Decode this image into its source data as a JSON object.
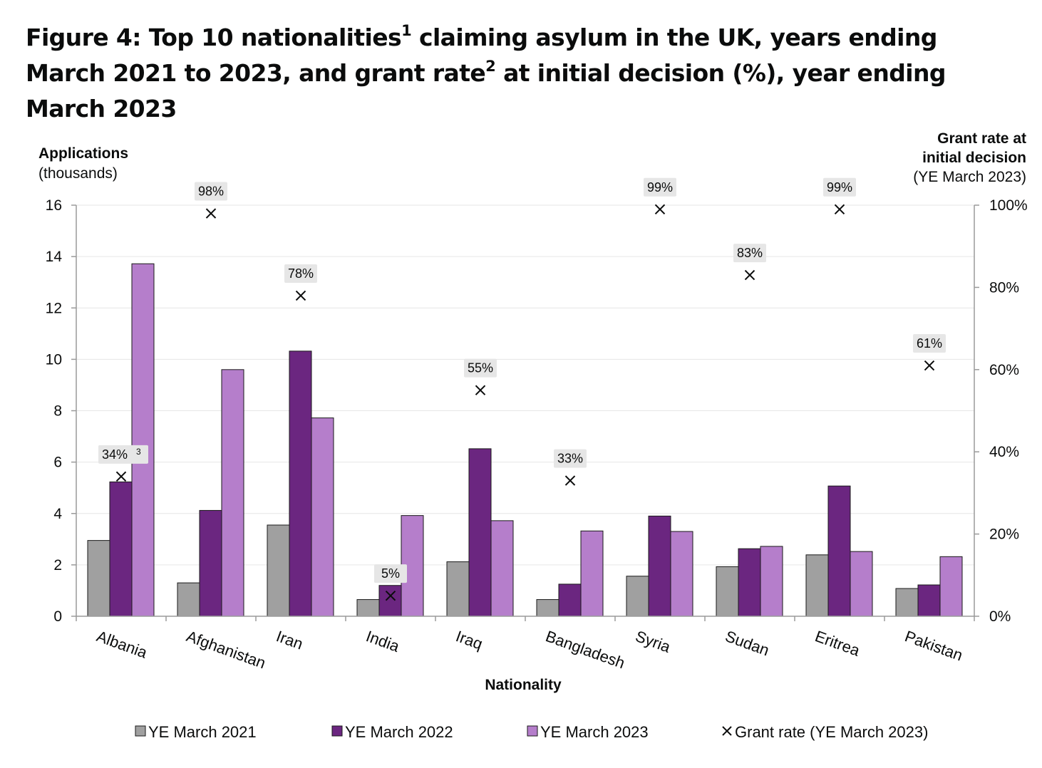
{
  "title": {
    "part1": "Figure 4: Top 10 nationalities",
    "sup1": "1",
    "part2": " claiming asylum in the UK, years ending March 2021 to 2023, and grant rate",
    "sup2": "2",
    "part3": " at initial decision (%), year ending March 2023"
  },
  "chart_data": {
    "type": "bar",
    "categories": [
      "Albania",
      "Afghanistan",
      "Iran",
      "India",
      "Iraq",
      "Bangladesh",
      "Syria",
      "Sudan",
      "Eritrea",
      "Pakistan"
    ],
    "series": [
      {
        "name": "YE March 2021",
        "color": "#a0a0a0",
        "values": [
          2.95,
          1.3,
          3.55,
          0.65,
          2.12,
          0.65,
          1.56,
          1.93,
          2.39,
          1.08
        ]
      },
      {
        "name": "YE March 2022",
        "color": "#6b2680",
        "values": [
          5.23,
          4.12,
          10.32,
          1.2,
          6.52,
          1.25,
          3.9,
          2.63,
          5.07,
          1.22
        ]
      },
      {
        "name": "YE March 2023",
        "color": "#b57ecb",
        "values": [
          13.72,
          9.6,
          7.72,
          3.92,
          3.72,
          3.32,
          3.3,
          2.72,
          2.52,
          2.32
        ]
      }
    ],
    "line_series": {
      "name": "Grant rate (YE March 2023)",
      "marker": "x",
      "axis": "right",
      "values": [
        34,
        98,
        78,
        5,
        55,
        33,
        99,
        83,
        99,
        61
      ],
      "labels": [
        "34%",
        "98%",
        "78%",
        "5%",
        "55%",
        "33%",
        "99%",
        "83%",
        "99%",
        "61%"
      ],
      "label_footnotes": [
        "3",
        "",
        "",
        "",
        "",
        "",
        "",
        "",
        "",
        ""
      ]
    },
    "xlabel": "Nationality",
    "ylabel": "Applications",
    "ylabel_sub": "(thousands)",
    "ylim": [
      0,
      16
    ],
    "yticks": [
      "0",
      "2",
      "4",
      "6",
      "8",
      "10",
      "12",
      "14",
      "16"
    ],
    "y2label_line1": "Grant rate at",
    "y2label_line2": "initial decision",
    "y2label_sub": "(YE March 2023)",
    "y2lim": [
      0,
      100
    ],
    "y2ticks": [
      "0%",
      "20%",
      "40%",
      "60%",
      "80%",
      "100%"
    ],
    "grid": true,
    "legend_position": "bottom"
  }
}
